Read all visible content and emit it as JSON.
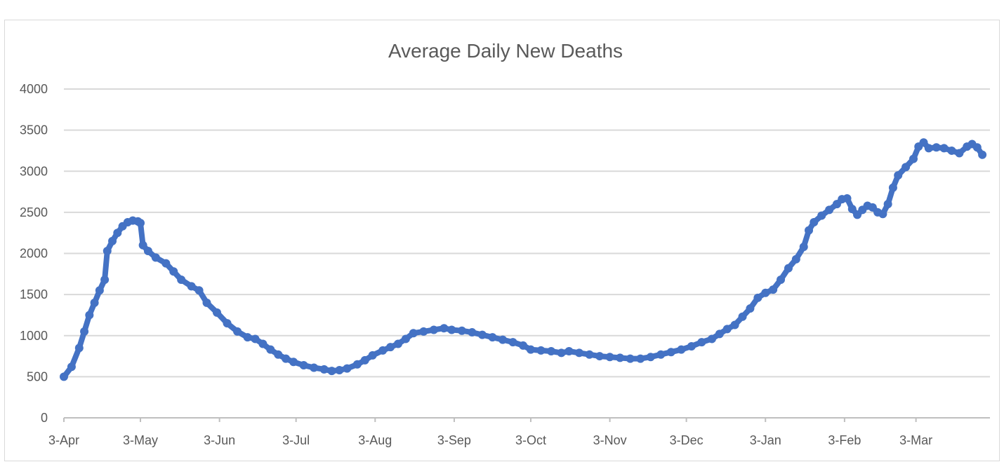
{
  "chart_data": {
    "type": "line",
    "title": "Average Daily New Deaths",
    "xlabel": "",
    "ylabel": "",
    "ylim": [
      0,
      4000
    ],
    "y_ticks": [
      0,
      500,
      1000,
      1500,
      2000,
      2500,
      3000,
      3500,
      4000
    ],
    "x_tick_labels": [
      "3-Apr",
      "3-May",
      "3-Jun",
      "3-Jul",
      "3-Aug",
      "3-Sep",
      "3-Oct",
      "3-Nov",
      "3-Dec",
      "3-Jan",
      "3-Feb",
      "3-Mar"
    ],
    "x_tick_day_index": [
      0,
      30,
      61,
      91,
      122,
      153,
      183,
      214,
      244,
      275,
      306,
      334
    ],
    "x_range_days": [
      0,
      363
    ],
    "grid": "horizontal",
    "legend": "none",
    "line_color": "#4472C4",
    "series": [
      {
        "points": [
          [
            0,
            500
          ],
          [
            3,
            620
          ],
          [
            6,
            850
          ],
          [
            8,
            1050
          ],
          [
            10,
            1250
          ],
          [
            12,
            1400
          ],
          [
            14,
            1550
          ],
          [
            16,
            1680
          ],
          [
            17,
            2030
          ],
          [
            19,
            2150
          ],
          [
            21,
            2250
          ],
          [
            23,
            2330
          ],
          [
            25,
            2380
          ],
          [
            27,
            2400
          ],
          [
            29,
            2390
          ],
          [
            30,
            2370
          ],
          [
            31,
            2100
          ],
          [
            33,
            2030
          ],
          [
            36,
            1950
          ],
          [
            40,
            1880
          ],
          [
            43,
            1780
          ],
          [
            46,
            1680
          ],
          [
            50,
            1600
          ],
          [
            53,
            1550
          ],
          [
            56,
            1400
          ],
          [
            60,
            1280
          ],
          [
            64,
            1150
          ],
          [
            68,
            1050
          ],
          [
            72,
            980
          ],
          [
            75,
            960
          ],
          [
            78,
            900
          ],
          [
            81,
            830
          ],
          [
            84,
            770
          ],
          [
            87,
            720
          ],
          [
            90,
            680
          ],
          [
            94,
            640
          ],
          [
            98,
            610
          ],
          [
            102,
            590
          ],
          [
            105,
            570
          ],
          [
            108,
            580
          ],
          [
            111,
            600
          ],
          [
            115,
            650
          ],
          [
            118,
            700
          ],
          [
            121,
            760
          ],
          [
            125,
            820
          ],
          [
            128,
            860
          ],
          [
            131,
            900
          ],
          [
            134,
            960
          ],
          [
            137,
            1030
          ],
          [
            141,
            1050
          ],
          [
            145,
            1070
          ],
          [
            149,
            1090
          ],
          [
            152,
            1070
          ],
          [
            156,
            1060
          ],
          [
            160,
            1040
          ],
          [
            164,
            1010
          ],
          [
            168,
            980
          ],
          [
            172,
            950
          ],
          [
            176,
            920
          ],
          [
            180,
            880
          ],
          [
            183,
            830
          ],
          [
            187,
            820
          ],
          [
            191,
            810
          ],
          [
            195,
            790
          ],
          [
            198,
            810
          ],
          [
            202,
            790
          ],
          [
            206,
            770
          ],
          [
            210,
            750
          ],
          [
            214,
            740
          ],
          [
            218,
            730
          ],
          [
            222,
            720
          ],
          [
            226,
            720
          ],
          [
            230,
            740
          ],
          [
            234,
            770
          ],
          [
            238,
            800
          ],
          [
            242,
            830
          ],
          [
            246,
            870
          ],
          [
            250,
            920
          ],
          [
            254,
            960
          ],
          [
            257,
            1020
          ],
          [
            260,
            1080
          ],
          [
            263,
            1130
          ],
          [
            266,
            1230
          ],
          [
            269,
            1330
          ],
          [
            272,
            1460
          ],
          [
            275,
            1520
          ],
          [
            278,
            1560
          ],
          [
            281,
            1680
          ],
          [
            284,
            1820
          ],
          [
            287,
            1930
          ],
          [
            290,
            2080
          ],
          [
            292,
            2280
          ],
          [
            294,
            2380
          ],
          [
            297,
            2460
          ],
          [
            300,
            2530
          ],
          [
            303,
            2600
          ],
          [
            305,
            2660
          ],
          [
            307,
            2670
          ],
          [
            309,
            2540
          ],
          [
            311,
            2470
          ],
          [
            313,
            2530
          ],
          [
            315,
            2580
          ],
          [
            317,
            2560
          ],
          [
            319,
            2500
          ],
          [
            321,
            2480
          ],
          [
            323,
            2600
          ],
          [
            325,
            2800
          ],
          [
            327,
            2950
          ],
          [
            330,
            3050
          ],
          [
            333,
            3150
          ],
          [
            335,
            3300
          ],
          [
            337,
            3350
          ],
          [
            339,
            3280
          ],
          [
            342,
            3290
          ],
          [
            345,
            3280
          ],
          [
            348,
            3250
          ],
          [
            351,
            3220
          ],
          [
            354,
            3300
          ],
          [
            356,
            3330
          ],
          [
            358,
            3290
          ],
          [
            360,
            3200
          ]
        ]
      }
    ]
  }
}
